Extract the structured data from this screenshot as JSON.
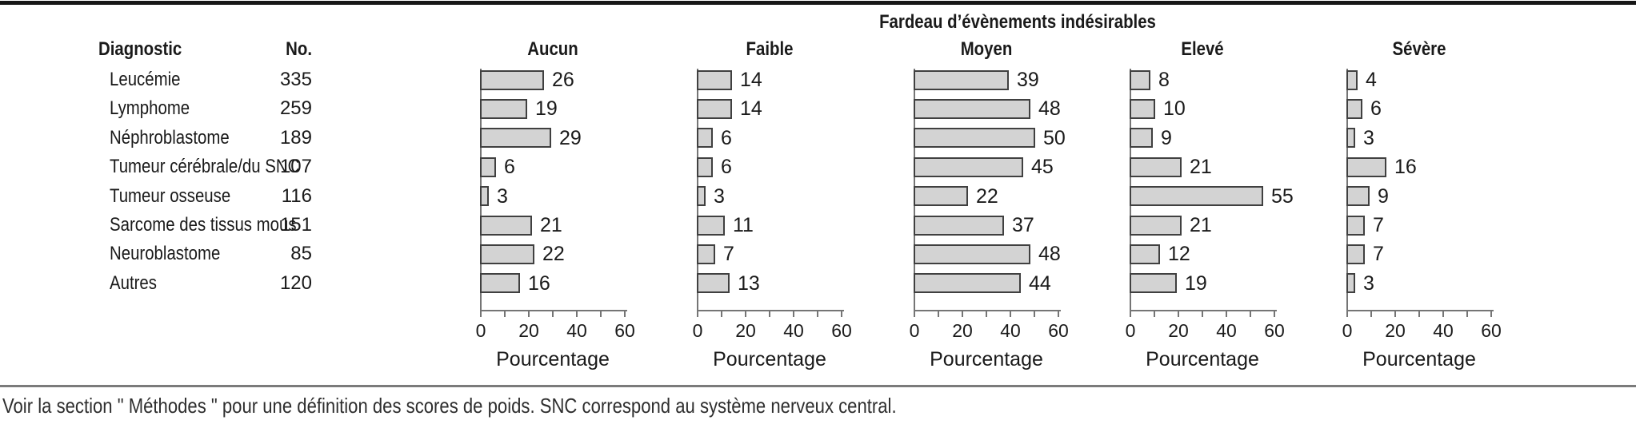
{
  "columns": {
    "diagnostic": "Diagnostic",
    "no": "No."
  },
  "footnote": "Voir la section \" Méthodes \" pour une définition des scores de poids. SNC correspond au système nerveux central.",
  "colors": {
    "bar_fill": "#d3d3d3",
    "bar_border": "#404040",
    "axis": "#757575",
    "text": "#1a1a1a",
    "separator": "#7b7b7b",
    "top_rule": "#161616"
  },
  "chart_data": {
    "type": "bar",
    "orientation": "horizontal",
    "title": "Fardeau d’évènements indésirables",
    "categories": [
      "Leucémie",
      "Lymphome",
      "Néphroblastome",
      "Tumeur cérébrale/du SNC",
      "Tumeur osseuse",
      "Sarcome des tissus mous",
      "Neuroblastome",
      "Autres"
    ],
    "n_values": [
      335,
      259,
      189,
      107,
      116,
      151,
      85,
      120
    ],
    "series": [
      {
        "name": "Aucun",
        "values": [
          26,
          19,
          29,
          6,
          3,
          21,
          22,
          16
        ]
      },
      {
        "name": "Faible",
        "values": [
          14,
          14,
          6,
          6,
          3,
          11,
          7,
          13
        ]
      },
      {
        "name": "Moyen",
        "values": [
          39,
          48,
          50,
          45,
          22,
          37,
          48,
          44
        ]
      },
      {
        "name": "Elevé",
        "values": [
          8,
          10,
          9,
          21,
          55,
          21,
          12,
          19
        ]
      },
      {
        "name": "Sévère",
        "values": [
          4,
          6,
          3,
          16,
          9,
          7,
          7,
          3
        ]
      }
    ],
    "xlabel": "Pourcentage",
    "xlim": [
      0,
      60
    ],
    "x_ticks": [
      0,
      20,
      40,
      60
    ],
    "x_minor_ticks": [
      10,
      30,
      50
    ],
    "grid": false,
    "legend": "none",
    "value_labels": "end-of-bar"
  }
}
